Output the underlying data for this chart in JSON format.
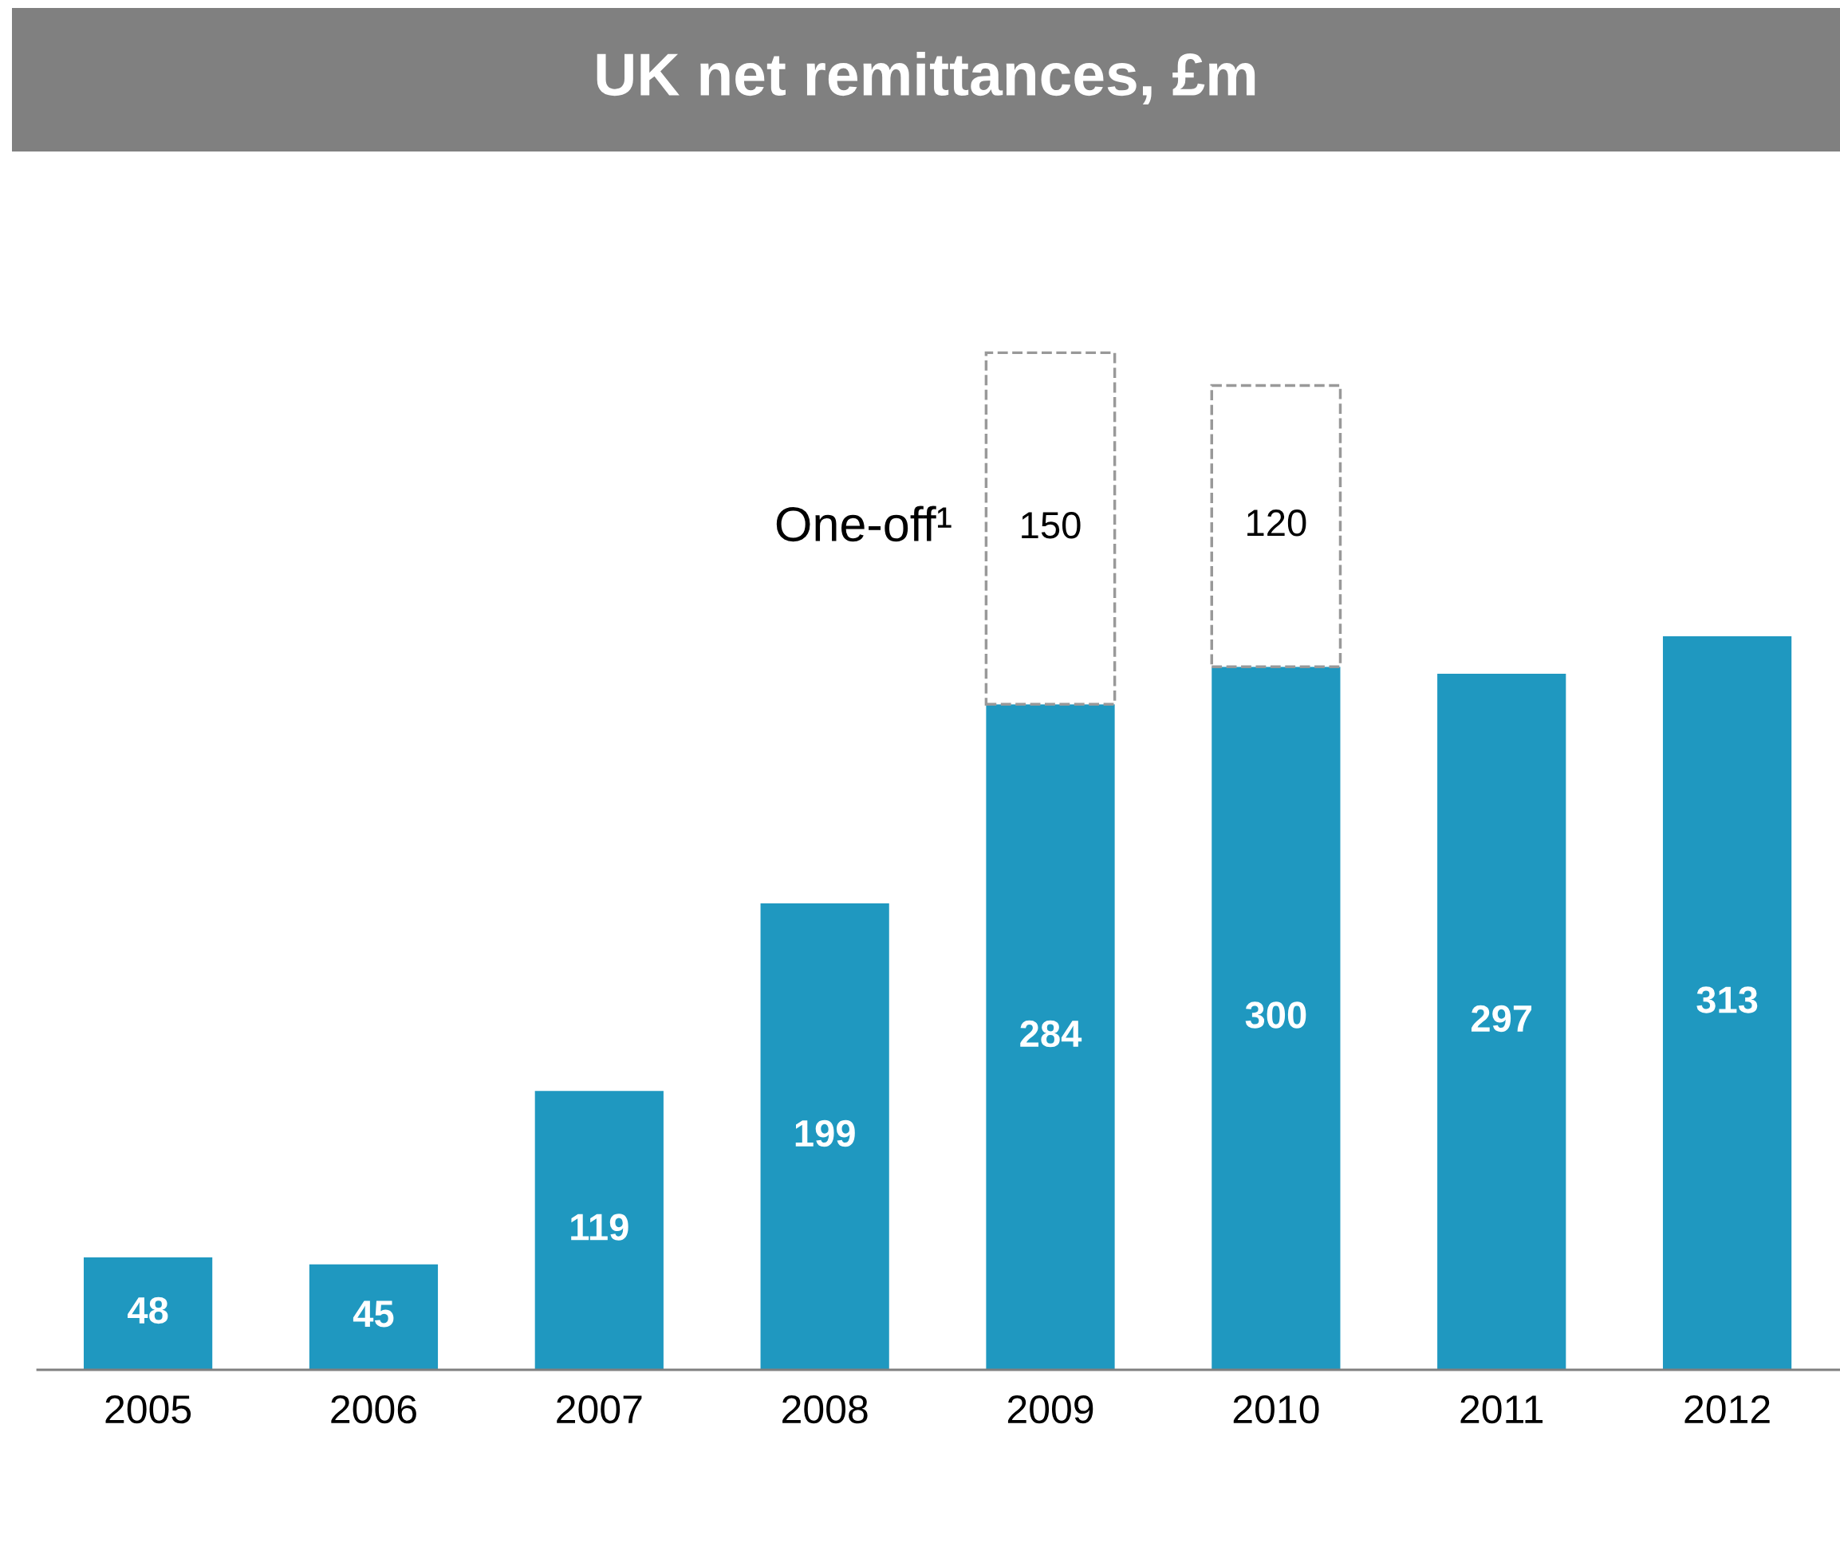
{
  "chart_data": {
    "type": "bar",
    "title": "UK net remittances, £m",
    "stacked": true,
    "data_labels": true,
    "categories": [
      "2005",
      "2006",
      "2007",
      "2008",
      "2009",
      "2010",
      "2011",
      "2012"
    ],
    "series": [
      {
        "color": "#1f98c0",
        "values": [
          48,
          45,
          119,
          199,
          284,
          300,
          297,
          313
        ]
      },
      {
        "name": "One-off¹",
        "color": "#ffffff",
        "line_style": "dashed",
        "values": [
          null,
          null,
          null,
          null,
          150,
          120,
          null,
          null
        ]
      }
    ]
  }
}
